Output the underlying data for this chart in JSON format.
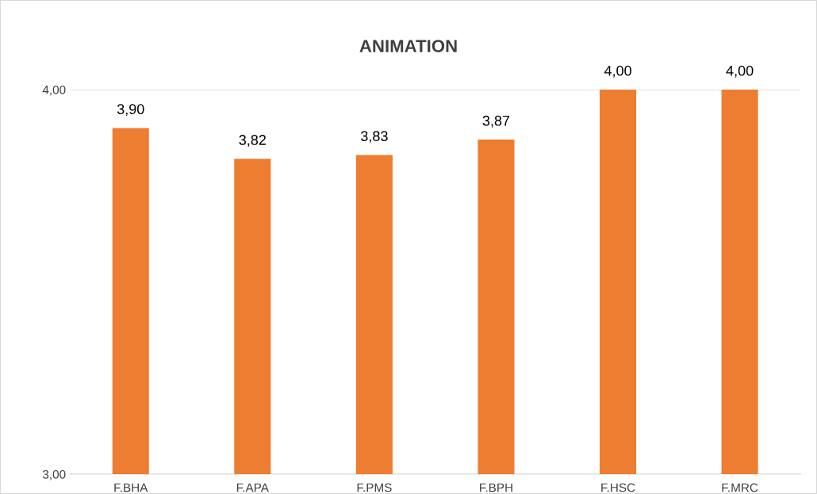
{
  "chart_data": {
    "type": "bar",
    "title": "ANIMATION",
    "categories": [
      "F.BHA",
      "F.APA",
      "F.PMS",
      "F.BPH",
      "F.HSC",
      "F.MRC"
    ],
    "values": [
      3.9,
      3.82,
      3.83,
      3.87,
      4.0,
      4.0
    ],
    "value_labels": [
      "3,90",
      "3,82",
      "3,83",
      "3,87",
      "4,00",
      "4,00"
    ],
    "color": "#ed7d31",
    "ylim": [
      3,
      4
    ],
    "yticks": [
      {
        "value": 3,
        "label": "3,00"
      },
      {
        "value": 4,
        "label": "4,00"
      }
    ],
    "grid": "y"
  }
}
